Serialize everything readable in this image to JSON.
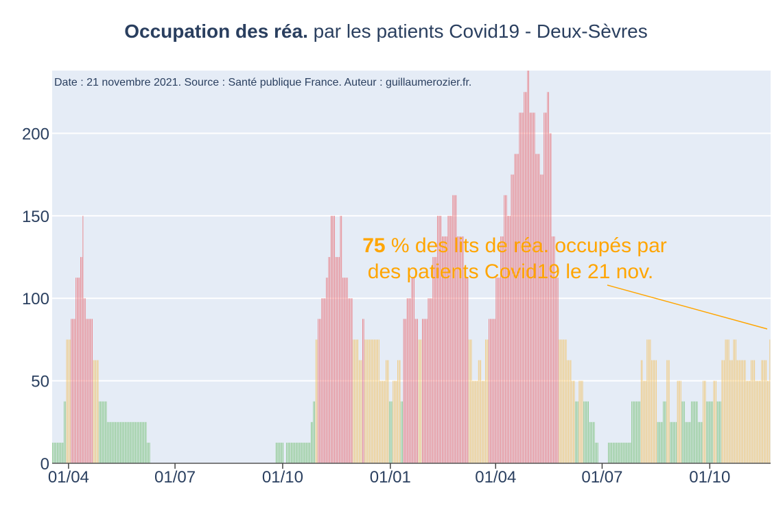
{
  "chart_data": {
    "type": "bar",
    "title_bold": "Occupation des réa.",
    "title_rest": " par les patients Covid19 - Deux-Sèvres",
    "subtitle": "Date : 21 novembre 2021. Source : Santé publique France. Auteur : guillaumerozier.fr.",
    "annotation": {
      "value": "75",
      "line1_rest": " % des lits de réa. occupés par",
      "line2": "des patients Covid19 le 21 nov."
    },
    "xlabel": "",
    "ylabel": "",
    "ylim": [
      0,
      238
    ],
    "x_start": "2020-03-18",
    "x_end": "2021-11-21",
    "xticks": [
      {
        "date": "2020-04-01",
        "label": "01/04"
      },
      {
        "date": "2020-07-01",
        "label": "01/07"
      },
      {
        "date": "2020-10-01",
        "label": "01/10"
      },
      {
        "date": "2021-01-01",
        "label": "01/01"
      },
      {
        "date": "2021-04-01",
        "label": "01/04"
      },
      {
        "date": "2021-07-01",
        "label": "01/07"
      },
      {
        "date": "2021-10-01",
        "label": "01/10"
      }
    ],
    "yticks": [
      0,
      50,
      100,
      150,
      200
    ],
    "grid": true,
    "legend": "none",
    "colors": {
      "low": "#7dc27d",
      "mid": "#f2c46b",
      "high": "#e8737a",
      "plot_bg": "#e5ecf6",
      "annotation": "#ffa500",
      "text": "#2a3f5f"
    },
    "series_segments": [
      {
        "start": "2020-03-18",
        "end": "2020-03-27",
        "value": 12.5,
        "level": "low"
      },
      {
        "start": "2020-03-28",
        "end": "2020-03-29",
        "value": 37.5,
        "level": "low"
      },
      {
        "start": "2020-03-30",
        "end": "2020-04-02",
        "value": 75,
        "level": "mid"
      },
      {
        "start": "2020-04-03",
        "end": "2020-04-06",
        "value": 87.5,
        "level": "high"
      },
      {
        "start": "2020-04-07",
        "end": "2020-04-10",
        "value": 112.5,
        "level": "high"
      },
      {
        "start": "2020-04-11",
        "end": "2020-04-12",
        "value": 125,
        "level": "high"
      },
      {
        "start": "2020-04-13",
        "end": "2020-04-13",
        "value": 150,
        "level": "high"
      },
      {
        "start": "2020-04-14",
        "end": "2020-04-15",
        "value": 100,
        "level": "high"
      },
      {
        "start": "2020-04-16",
        "end": "2020-04-21",
        "value": 87.5,
        "level": "high"
      },
      {
        "start": "2020-04-22",
        "end": "2020-04-26",
        "value": 62.5,
        "level": "mid"
      },
      {
        "start": "2020-04-27",
        "end": "2020-05-03",
        "value": 37.5,
        "level": "low"
      },
      {
        "start": "2020-05-04",
        "end": "2020-06-06",
        "value": 25,
        "level": "low"
      },
      {
        "start": "2020-06-07",
        "end": "2020-06-09",
        "value": 12.5,
        "level": "low"
      },
      {
        "start": "2020-06-10",
        "end": "2020-09-24",
        "value": 0,
        "level": "low"
      },
      {
        "start": "2020-09-25",
        "end": "2020-10-01",
        "value": 12.5,
        "level": "low"
      },
      {
        "start": "2020-10-02",
        "end": "2020-10-03",
        "value": 0,
        "level": "low"
      },
      {
        "start": "2020-10-04",
        "end": "2020-10-24",
        "value": 12.5,
        "level": "low"
      },
      {
        "start": "2020-10-25",
        "end": "2020-10-26",
        "value": 25,
        "level": "low"
      },
      {
        "start": "2020-10-27",
        "end": "2020-10-28",
        "value": 37.5,
        "level": "low"
      },
      {
        "start": "2020-10-29",
        "end": "2020-10-30",
        "value": 75,
        "level": "mid"
      },
      {
        "start": "2020-10-31",
        "end": "2020-11-02",
        "value": 87.5,
        "level": "high"
      },
      {
        "start": "2020-11-03",
        "end": "2020-11-06",
        "value": 100,
        "level": "high"
      },
      {
        "start": "2020-11-07",
        "end": "2020-11-08",
        "value": 112.5,
        "level": "high"
      },
      {
        "start": "2020-11-09",
        "end": "2020-11-10",
        "value": 125,
        "level": "high"
      },
      {
        "start": "2020-11-11",
        "end": "2020-11-14",
        "value": 150,
        "level": "high"
      },
      {
        "start": "2020-11-15",
        "end": "2020-11-18",
        "value": 125,
        "level": "high"
      },
      {
        "start": "2020-11-19",
        "end": "2020-11-20",
        "value": 150,
        "level": "high"
      },
      {
        "start": "2020-11-21",
        "end": "2020-11-25",
        "value": 112.5,
        "level": "high"
      },
      {
        "start": "2020-11-26",
        "end": "2020-11-29",
        "value": 100,
        "level": "high"
      },
      {
        "start": "2020-11-30",
        "end": "2020-12-04",
        "value": 75,
        "level": "mid"
      },
      {
        "start": "2020-12-05",
        "end": "2020-12-07",
        "value": 62.5,
        "level": "mid"
      },
      {
        "start": "2020-12-08",
        "end": "2020-12-09",
        "value": 87.5,
        "level": "high"
      },
      {
        "start": "2020-12-10",
        "end": "2020-12-22",
        "value": 75,
        "level": "mid"
      },
      {
        "start": "2020-12-23",
        "end": "2020-12-27",
        "value": 50,
        "level": "mid"
      },
      {
        "start": "2020-12-28",
        "end": "2020-12-30",
        "value": 62.5,
        "level": "mid"
      },
      {
        "start": "2020-12-31",
        "end": "2021-01-02",
        "value": 37.5,
        "level": "low"
      },
      {
        "start": "2021-01-03",
        "end": "2021-01-06",
        "value": 50,
        "level": "mid"
      },
      {
        "start": "2021-01-07",
        "end": "2021-01-09",
        "value": 62.5,
        "level": "mid"
      },
      {
        "start": "2021-01-10",
        "end": "2021-01-11",
        "value": 37.5,
        "level": "low"
      },
      {
        "start": "2021-01-12",
        "end": "2021-01-14",
        "value": 87.5,
        "level": "high"
      },
      {
        "start": "2021-01-15",
        "end": "2021-01-18",
        "value": 100,
        "level": "high"
      },
      {
        "start": "2021-01-19",
        "end": "2021-01-21",
        "value": 112.5,
        "level": "high"
      },
      {
        "start": "2021-01-22",
        "end": "2021-01-24",
        "value": 87.5,
        "level": "high"
      },
      {
        "start": "2021-01-25",
        "end": "2021-01-27",
        "value": 75,
        "level": "mid"
      },
      {
        "start": "2021-01-28",
        "end": "2021-02-01",
        "value": 87.5,
        "level": "high"
      },
      {
        "start": "2021-02-02",
        "end": "2021-02-05",
        "value": 100,
        "level": "high"
      },
      {
        "start": "2021-02-06",
        "end": "2021-02-09",
        "value": 125,
        "level": "high"
      },
      {
        "start": "2021-02-10",
        "end": "2021-02-13",
        "value": 150,
        "level": "high"
      },
      {
        "start": "2021-02-14",
        "end": "2021-02-18",
        "value": 137.5,
        "level": "high"
      },
      {
        "start": "2021-02-19",
        "end": "2021-02-22",
        "value": 150,
        "level": "high"
      },
      {
        "start": "2021-02-23",
        "end": "2021-02-26",
        "value": 162.5,
        "level": "high"
      },
      {
        "start": "2021-02-27",
        "end": "2021-03-04",
        "value": 137.5,
        "level": "high"
      },
      {
        "start": "2021-03-05",
        "end": "2021-03-08",
        "value": 112.5,
        "level": "high"
      },
      {
        "start": "2021-03-09",
        "end": "2021-03-11",
        "value": 75,
        "level": "mid"
      },
      {
        "start": "2021-03-12",
        "end": "2021-03-16",
        "value": 50,
        "level": "mid"
      },
      {
        "start": "2021-03-17",
        "end": "2021-03-19",
        "value": 62.5,
        "level": "mid"
      },
      {
        "start": "2021-03-20",
        "end": "2021-03-22",
        "value": 50,
        "level": "mid"
      },
      {
        "start": "2021-03-23",
        "end": "2021-03-25",
        "value": 75,
        "level": "mid"
      },
      {
        "start": "2021-03-26",
        "end": "2021-03-31",
        "value": 87.5,
        "level": "high"
      },
      {
        "start": "2021-04-01",
        "end": "2021-04-04",
        "value": 112.5,
        "level": "high"
      },
      {
        "start": "2021-04-05",
        "end": "2021-04-07",
        "value": 137.5,
        "level": "high"
      },
      {
        "start": "2021-04-08",
        "end": "2021-04-10",
        "value": 162.5,
        "level": "high"
      },
      {
        "start": "2021-04-11",
        "end": "2021-04-13",
        "value": 150,
        "level": "high"
      },
      {
        "start": "2021-04-14",
        "end": "2021-04-16",
        "value": 175,
        "level": "high"
      },
      {
        "start": "2021-04-17",
        "end": "2021-04-20",
        "value": 187.5,
        "level": "high"
      },
      {
        "start": "2021-04-21",
        "end": "2021-04-24",
        "value": 212.5,
        "level": "high"
      },
      {
        "start": "2021-04-25",
        "end": "2021-04-27",
        "value": 225,
        "level": "high"
      },
      {
        "start": "2021-04-28",
        "end": "2021-04-29",
        "value": 238,
        "level": "high"
      },
      {
        "start": "2021-04-30",
        "end": "2021-05-04",
        "value": 212.5,
        "level": "high"
      },
      {
        "start": "2021-05-05",
        "end": "2021-05-08",
        "value": 187.5,
        "level": "high"
      },
      {
        "start": "2021-05-09",
        "end": "2021-05-11",
        "value": 175,
        "level": "high"
      },
      {
        "start": "2021-05-12",
        "end": "2021-05-14",
        "value": 212.5,
        "level": "high"
      },
      {
        "start": "2021-05-15",
        "end": "2021-05-16",
        "value": 225,
        "level": "high"
      },
      {
        "start": "2021-05-17",
        "end": "2021-05-18",
        "value": 200,
        "level": "high"
      },
      {
        "start": "2021-05-19",
        "end": "2021-05-21",
        "value": 137.5,
        "level": "high"
      },
      {
        "start": "2021-05-22",
        "end": "2021-05-24",
        "value": 112.5,
        "level": "high"
      },
      {
        "start": "2021-05-25",
        "end": "2021-05-31",
        "value": 75,
        "level": "mid"
      },
      {
        "start": "2021-06-01",
        "end": "2021-06-04",
        "value": 62.5,
        "level": "mid"
      },
      {
        "start": "2021-06-05",
        "end": "2021-06-07",
        "value": 50,
        "level": "mid"
      },
      {
        "start": "2021-06-08",
        "end": "2021-06-10",
        "value": 37.5,
        "level": "low"
      },
      {
        "start": "2021-06-11",
        "end": "2021-06-14",
        "value": 50,
        "level": "mid"
      },
      {
        "start": "2021-06-15",
        "end": "2021-06-19",
        "value": 37.5,
        "level": "low"
      },
      {
        "start": "2021-06-20",
        "end": "2021-06-24",
        "value": 25,
        "level": "low"
      },
      {
        "start": "2021-06-25",
        "end": "2021-06-27",
        "value": 12.5,
        "level": "low"
      },
      {
        "start": "2021-06-28",
        "end": "2021-07-05",
        "value": 0,
        "level": "low"
      },
      {
        "start": "2021-07-06",
        "end": "2021-07-25",
        "value": 12.5,
        "level": "low"
      },
      {
        "start": "2021-07-26",
        "end": "2021-08-02",
        "value": 37.5,
        "level": "low"
      },
      {
        "start": "2021-08-03",
        "end": "2021-08-04",
        "value": 62.5,
        "level": "mid"
      },
      {
        "start": "2021-08-05",
        "end": "2021-08-07",
        "value": 50,
        "level": "mid"
      },
      {
        "start": "2021-08-08",
        "end": "2021-08-11",
        "value": 75,
        "level": "mid"
      },
      {
        "start": "2021-08-12",
        "end": "2021-08-16",
        "value": 62.5,
        "level": "mid"
      },
      {
        "start": "2021-08-17",
        "end": "2021-08-21",
        "value": 25,
        "level": "low"
      },
      {
        "start": "2021-08-22",
        "end": "2021-08-24",
        "value": 37.5,
        "level": "low"
      },
      {
        "start": "2021-08-25",
        "end": "2021-08-27",
        "value": 62.5,
        "level": "mid"
      },
      {
        "start": "2021-08-28",
        "end": "2021-09-02",
        "value": 25,
        "level": "low"
      },
      {
        "start": "2021-09-03",
        "end": "2021-09-06",
        "value": 50,
        "level": "mid"
      },
      {
        "start": "2021-09-07",
        "end": "2021-09-09",
        "value": 37.5,
        "level": "low"
      },
      {
        "start": "2021-09-10",
        "end": "2021-09-14",
        "value": 25,
        "level": "low"
      },
      {
        "start": "2021-09-15",
        "end": "2021-09-20",
        "value": 37.5,
        "level": "low"
      },
      {
        "start": "2021-09-21",
        "end": "2021-09-24",
        "value": 25,
        "level": "low"
      },
      {
        "start": "2021-09-25",
        "end": "2021-09-27",
        "value": 50,
        "level": "mid"
      },
      {
        "start": "2021-09-28",
        "end": "2021-10-03",
        "value": 37.5,
        "level": "low"
      },
      {
        "start": "2021-10-04",
        "end": "2021-10-06",
        "value": 50,
        "level": "mid"
      },
      {
        "start": "2021-10-07",
        "end": "2021-10-10",
        "value": 37.5,
        "level": "low"
      },
      {
        "start": "2021-10-11",
        "end": "2021-10-13",
        "value": 62.5,
        "level": "mid"
      },
      {
        "start": "2021-10-14",
        "end": "2021-10-17",
        "value": 75,
        "level": "mid"
      },
      {
        "start": "2021-10-18",
        "end": "2021-10-20",
        "value": 62.5,
        "level": "mid"
      },
      {
        "start": "2021-10-21",
        "end": "2021-10-23",
        "value": 75,
        "level": "mid"
      },
      {
        "start": "2021-10-24",
        "end": "2021-10-31",
        "value": 62.5,
        "level": "mid"
      },
      {
        "start": "2021-11-01",
        "end": "2021-11-04",
        "value": 50,
        "level": "mid"
      },
      {
        "start": "2021-11-05",
        "end": "2021-11-08",
        "value": 62.5,
        "level": "mid"
      },
      {
        "start": "2021-11-09",
        "end": "2021-11-13",
        "value": 50,
        "level": "mid"
      },
      {
        "start": "2021-11-14",
        "end": "2021-11-18",
        "value": 62.5,
        "level": "mid"
      },
      {
        "start": "2021-11-19",
        "end": "2021-11-20",
        "value": 50,
        "level": "mid"
      },
      {
        "start": "2021-11-21",
        "end": "2021-11-21",
        "value": 75,
        "level": "mid"
      }
    ]
  }
}
